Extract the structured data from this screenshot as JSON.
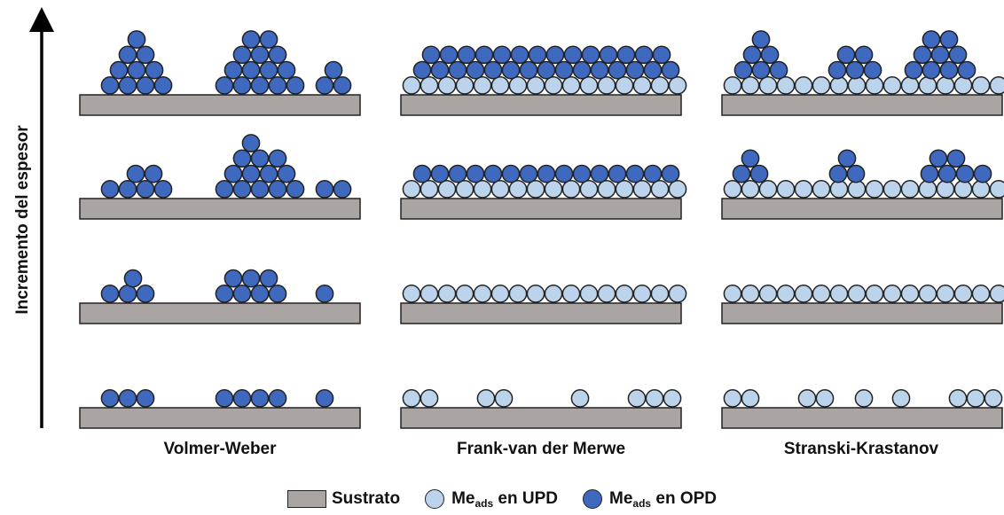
{
  "axis": {
    "label": "Incremento del espesor"
  },
  "colors": {
    "substrate": "#aaa5a3",
    "upd": "#bcd4eb",
    "opd": "#3f69be",
    "outline": "#222222"
  },
  "columns": [
    {
      "id": "volmer-weber",
      "label": "Volmer-Weber"
    },
    {
      "id": "frank-van-der-merwe",
      "label": "Frank-van der Merwe"
    },
    {
      "id": "stranski-krastanov",
      "label": "Stranski-Krastanov"
    }
  ],
  "legend": {
    "substrate": "Sustrato",
    "upd_main": "Me",
    "upd_sub": "ads",
    "upd_rest": " en UPD",
    "opd_main": "Me",
    "opd_sub": "ads",
    "opd_rest": " en OPD"
  }
}
